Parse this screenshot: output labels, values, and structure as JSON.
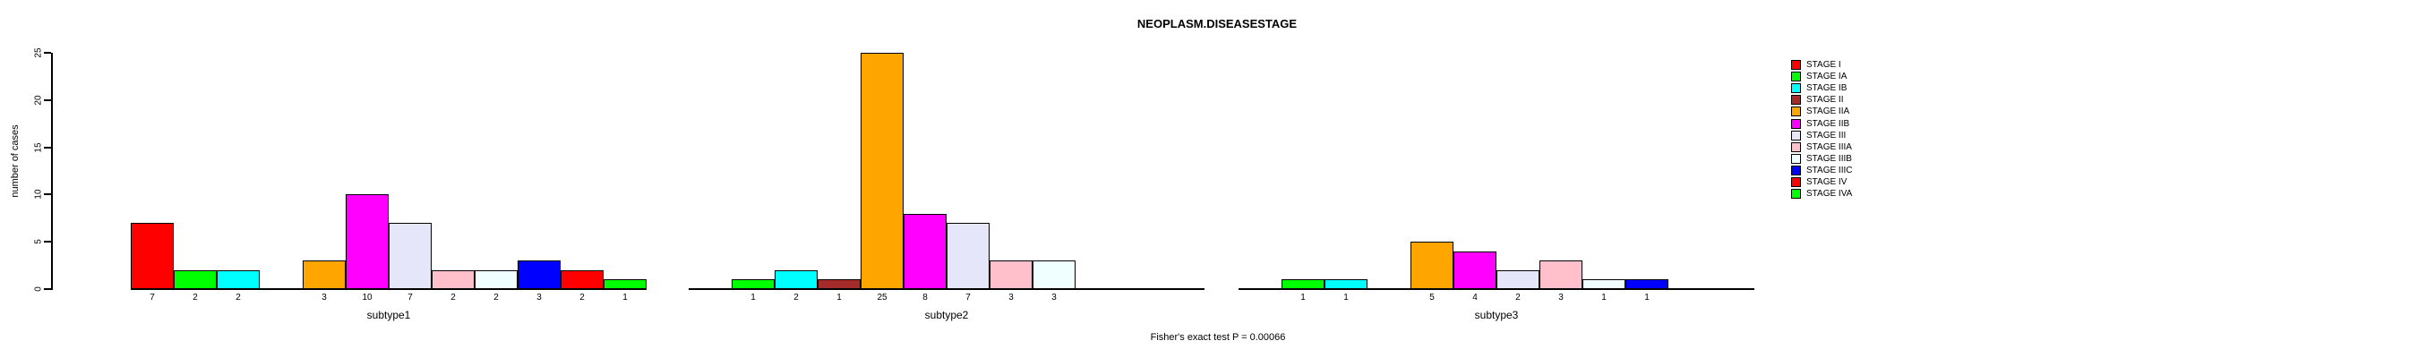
{
  "title": "NEOPLASM.DISEASESTAGE",
  "y_axis_label": "number of cases",
  "footer": "Fisher's exact test P = 0.00066",
  "chart_data": {
    "type": "bar",
    "title": "NEOPLASM.DISEASESTAGE",
    "xlabel": "",
    "ylabel": "number of cases",
    "ylim": [
      0,
      25
    ],
    "yticks": [
      0,
      5,
      10,
      15,
      20,
      25
    ],
    "grid": false,
    "legend_position": "right",
    "categories": [
      "STAGE I",
      "STAGE IA",
      "STAGE IB",
      "STAGE II",
      "STAGE IIA",
      "STAGE IIB",
      "STAGE III",
      "STAGE IIIA",
      "STAGE IIIB",
      "STAGE IIIC",
      "STAGE IV",
      "STAGE IVA"
    ],
    "colors": [
      "#FF0000",
      "#00FF00",
      "#00FFFF",
      "#A52A2A",
      "#FFA500",
      "#FF00FF",
      "#E6E6FA",
      "#FFC0CB",
      "#F0FFFF",
      "#0000FF",
      "#FF0000",
      "#00FF00"
    ],
    "groups": [
      {
        "label": "subtype1",
        "values": [
          7,
          2,
          2,
          0,
          3,
          10,
          7,
          2,
          2,
          3,
          2,
          1
        ]
      },
      {
        "label": "subtype2",
        "values": [
          0,
          1,
          2,
          1,
          25,
          8,
          7,
          3,
          3,
          0,
          0,
          0
        ]
      },
      {
        "label": "subtype3",
        "values": [
          0,
          1,
          1,
          0,
          5,
          4,
          2,
          3,
          1,
          1,
          0,
          0
        ]
      }
    ],
    "annotation": "Fisher's exact test P = 0.00066"
  }
}
